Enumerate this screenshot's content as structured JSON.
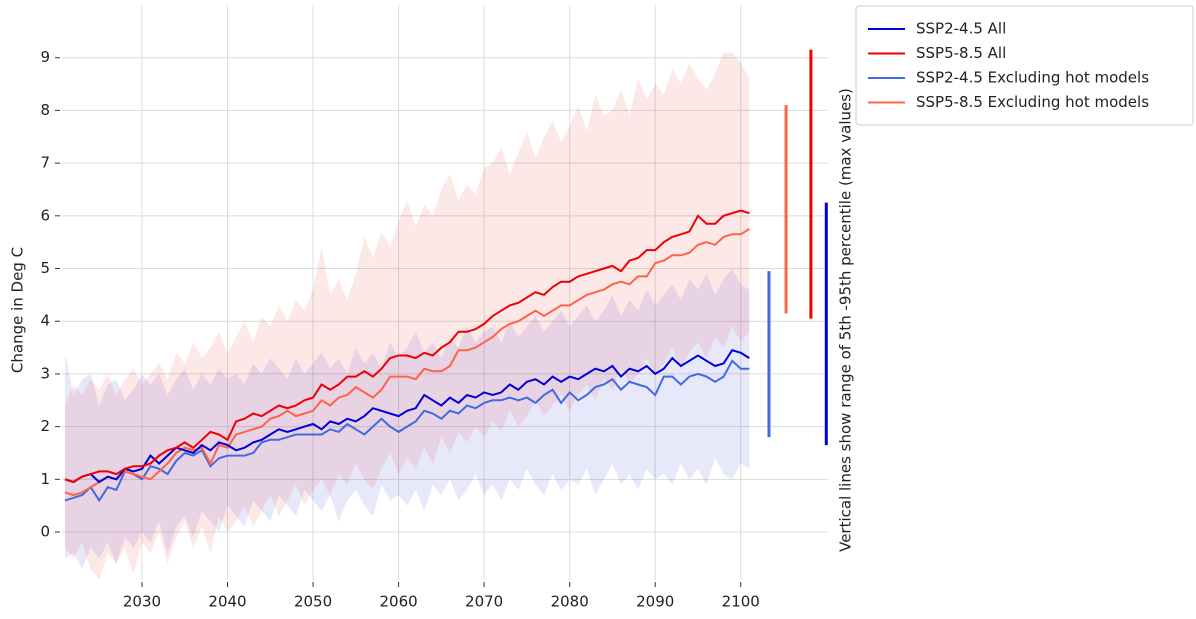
{
  "chart_data": {
    "type": "line",
    "ylabel": "Change in Deg C",
    "annotation": "Vertical lines show range of 5th -95th percentile (max values)",
    "x_start": 2021,
    "xlim": [
      2020.65,
      2110.2
    ],
    "ylim": [
      -0.91,
      10.0
    ],
    "xticks": [
      2030,
      2040,
      2050,
      2060,
      2070,
      2080,
      2090,
      2100
    ],
    "yticks": [
      0,
      1,
      2,
      3,
      4,
      5,
      6,
      7,
      8,
      9
    ],
    "grid": true,
    "legend": "upper right",
    "series": [
      {
        "name": "SSP2-4.5 All",
        "color": "#0000d8",
        "range_x": 2110.0,
        "range": [
          1.65,
          6.25
        ],
        "values": [
          1.0,
          0.95,
          1.05,
          1.1,
          0.95,
          1.05,
          1.0,
          1.2,
          1.15,
          1.2,
          1.45,
          1.3,
          1.45,
          1.6,
          1.55,
          1.5,
          1.65,
          1.55,
          1.7,
          1.65,
          1.55,
          1.6,
          1.7,
          1.75,
          1.85,
          1.95,
          1.9,
          1.95,
          2.0,
          2.05,
          1.95,
          2.1,
          2.05,
          2.15,
          2.1,
          2.2,
          2.35,
          2.3,
          2.25,
          2.2,
          2.3,
          2.35,
          2.6,
          2.5,
          2.4,
          2.55,
          2.45,
          2.6,
          2.55,
          2.65,
          2.6,
          2.65,
          2.8,
          2.7,
          2.85,
          2.9,
          2.8,
          2.95,
          2.85,
          2.95,
          2.9,
          3.0,
          3.1,
          3.05,
          3.15,
          2.95,
          3.1,
          3.05,
          3.15,
          3.0,
          3.1,
          3.3,
          3.15,
          3.25,
          3.35,
          3.25,
          3.15,
          3.2,
          3.45,
          3.4,
          3.3
        ],
        "lower": [
          -0.5,
          -0.4,
          -0.7,
          -0.3,
          -0.5,
          -0.2,
          -0.6,
          -0.1,
          -0.3,
          0.0,
          -0.2,
          0.2,
          -0.4,
          0.1,
          0.3,
          -0.1,
          0.4,
          0.2,
          0.0,
          0.5,
          0.3,
          0.1,
          0.6,
          0.4,
          0.2,
          0.7,
          0.5,
          0.3,
          0.8,
          0.6,
          0.4,
          0.7,
          0.2,
          0.6,
          0.8,
          0.5,
          0.3,
          0.9,
          0.6,
          0.7,
          0.5,
          0.8,
          0.4,
          0.9,
          0.7,
          1.0,
          0.6,
          0.8,
          1.1,
          0.7,
          0.9,
          0.6,
          1.0,
          0.8,
          1.2,
          0.9,
          0.7,
          1.1,
          0.8,
          1.0,
          0.9,
          1.2,
          0.7,
          1.0,
          1.3,
          0.9,
          1.1,
          0.8,
          1.2,
          1.0,
          1.1,
          0.9,
          1.3,
          1.0,
          1.2,
          0.9,
          1.4,
          1.1,
          1.0,
          1.3,
          1.2
        ],
        "upper": [
          3.4,
          2.6,
          2.9,
          3.0,
          2.4,
          2.8,
          2.9,
          2.5,
          2.7,
          3.0,
          2.8,
          3.0,
          2.6,
          2.9,
          3.1,
          2.7,
          3.0,
          2.8,
          3.1,
          2.9,
          3.0,
          2.8,
          3.2,
          3.0,
          3.3,
          3.1,
          2.9,
          3.3,
          3.0,
          3.2,
          3.4,
          3.1,
          3.3,
          3.0,
          3.5,
          3.2,
          3.4,
          3.1,
          3.6,
          3.3,
          3.5,
          3.8,
          3.4,
          3.6,
          3.3,
          3.7,
          3.5,
          3.9,
          3.6,
          3.8,
          3.9,
          3.6,
          4.0,
          3.7,
          3.9,
          4.1,
          3.8,
          4.0,
          4.2,
          3.9,
          4.1,
          4.3,
          4.0,
          4.2,
          4.5,
          4.1,
          4.4,
          4.2,
          4.6,
          4.3,
          4.5,
          4.7,
          4.4,
          4.8,
          4.6,
          4.9,
          4.5,
          4.8,
          5.0,
          4.7,
          4.6
        ]
      },
      {
        "name": "SSP5-8.5 All",
        "color": "#ee0000",
        "range_x": 2108.2,
        "range": [
          4.05,
          9.15
        ],
        "values": [
          1.0,
          0.95,
          1.05,
          1.1,
          1.15,
          1.15,
          1.1,
          1.2,
          1.25,
          1.25,
          1.3,
          1.45,
          1.55,
          1.6,
          1.7,
          1.6,
          1.75,
          1.9,
          1.85,
          1.75,
          2.1,
          2.15,
          2.25,
          2.2,
          2.3,
          2.4,
          2.35,
          2.4,
          2.5,
          2.55,
          2.8,
          2.7,
          2.8,
          2.95,
          2.95,
          3.05,
          2.95,
          3.1,
          3.3,
          3.35,
          3.35,
          3.3,
          3.4,
          3.35,
          3.5,
          3.6,
          3.8,
          3.8,
          3.85,
          3.95,
          4.1,
          4.2,
          4.3,
          4.35,
          4.45,
          4.55,
          4.5,
          4.65,
          4.75,
          4.75,
          4.85,
          4.9,
          4.95,
          5.0,
          5.05,
          4.95,
          5.15,
          5.2,
          5.35,
          5.35,
          5.5,
          5.6,
          5.65,
          5.7,
          6.0,
          5.85,
          5.85,
          6.0,
          6.05,
          6.1,
          6.05
        ],
        "lower": [
          -0.3,
          -0.5,
          -0.2,
          -0.7,
          -0.9,
          -0.4,
          -0.6,
          -0.3,
          -0.8,
          -0.2,
          -0.4,
          0.0,
          -0.6,
          -0.1,
          0.2,
          -0.3,
          0.1,
          -0.4,
          0.3,
          0.0,
          0.2,
          0.5,
          0.1,
          0.4,
          0.7,
          0.3,
          0.6,
          0.9,
          0.5,
          0.8,
          1.0,
          0.7,
          1.1,
          0.9,
          1.3,
          1.0,
          0.8,
          1.2,
          1.5,
          1.1,
          1.4,
          1.2,
          1.6,
          1.3,
          1.8,
          1.5,
          1.9,
          1.7,
          2.0,
          1.8,
          2.1,
          1.9,
          2.3,
          2.0,
          2.2,
          2.5,
          2.2,
          2.4,
          2.6,
          2.3,
          2.6,
          2.8,
          2.5,
          2.9,
          2.7,
          3.1,
          2.8,
          3.0,
          3.3,
          3.0,
          3.2,
          3.5,
          3.1,
          3.4,
          3.6,
          3.3,
          3.7,
          3.5,
          3.9,
          3.6,
          3.8
        ],
        "upper": [
          2.4,
          2.8,
          2.6,
          2.9,
          2.7,
          3.0,
          2.6,
          2.9,
          3.1,
          2.8,
          3.0,
          3.2,
          2.9,
          3.4,
          3.2,
          3.6,
          3.3,
          3.5,
          3.8,
          3.4,
          3.7,
          4.0,
          3.6,
          4.1,
          3.9,
          4.3,
          4.0,
          4.4,
          4.2,
          4.6,
          5.4,
          4.5,
          4.8,
          4.4,
          4.9,
          5.6,
          5.2,
          5.7,
          5.4,
          5.9,
          6.3,
          5.8,
          6.2,
          6.0,
          6.5,
          6.8,
          6.3,
          6.6,
          6.4,
          6.9,
          7.0,
          7.3,
          6.8,
          7.2,
          7.6,
          7.1,
          7.5,
          7.8,
          7.4,
          7.7,
          8.1,
          7.6,
          8.3,
          7.9,
          8.0,
          8.4,
          7.9,
          8.6,
          8.2,
          8.5,
          8.3,
          8.8,
          8.5,
          8.9,
          8.6,
          8.4,
          8.7,
          9.1,
          9.1,
          8.9,
          8.6
        ]
      },
      {
        "name": "SSP2-4.5 Excluding hot models",
        "color": "#4169e1",
        "range_x": 2103.3,
        "range": [
          1.8,
          4.95
        ],
        "values": [
          0.6,
          0.65,
          0.7,
          0.85,
          0.6,
          0.85,
          0.8,
          1.15,
          1.1,
          1.0,
          1.25,
          1.2,
          1.1,
          1.35,
          1.5,
          1.45,
          1.55,
          1.25,
          1.4,
          1.45,
          1.45,
          1.45,
          1.5,
          1.7,
          1.75,
          1.75,
          1.8,
          1.85,
          1.85,
          1.85,
          1.85,
          1.95,
          1.9,
          2.05,
          1.95,
          1.85,
          2.0,
          2.15,
          2.0,
          1.9,
          2.0,
          2.1,
          2.3,
          2.25,
          2.15,
          2.3,
          2.25,
          2.4,
          2.35,
          2.45,
          2.5,
          2.5,
          2.55,
          2.5,
          2.55,
          2.45,
          2.6,
          2.7,
          2.45,
          2.65,
          2.5,
          2.6,
          2.75,
          2.8,
          2.9,
          2.7,
          2.85,
          2.8,
          2.75,
          2.6,
          2.95,
          2.95,
          2.8,
          2.95,
          3.0,
          2.95,
          2.85,
          2.95,
          3.25,
          3.1,
          3.1
        ]
      },
      {
        "name": "SSP5-8.5 Excluding hot models",
        "color": "#ff6347",
        "range_x": 2105.3,
        "range": [
          4.15,
          8.1
        ],
        "values": [
          0.75,
          0.7,
          0.75,
          0.85,
          0.95,
          1.05,
          1.0,
          1.15,
          1.1,
          1.05,
          1.0,
          1.15,
          1.3,
          1.5,
          1.6,
          1.55,
          1.6,
          1.3,
          1.65,
          1.6,
          1.85,
          1.9,
          1.95,
          2.0,
          2.15,
          2.2,
          2.3,
          2.2,
          2.25,
          2.3,
          2.5,
          2.4,
          2.55,
          2.6,
          2.75,
          2.65,
          2.55,
          2.7,
          2.95,
          2.95,
          2.95,
          2.9,
          3.1,
          3.05,
          3.05,
          3.15,
          3.45,
          3.45,
          3.5,
          3.6,
          3.7,
          3.85,
          3.95,
          4.0,
          4.1,
          4.2,
          4.1,
          4.2,
          4.3,
          4.3,
          4.4,
          4.5,
          4.55,
          4.6,
          4.7,
          4.75,
          4.7,
          4.85,
          4.85,
          5.1,
          5.15,
          5.25,
          5.25,
          5.3,
          5.45,
          5.5,
          5.45,
          5.6,
          5.65,
          5.65,
          5.75
        ]
      }
    ]
  }
}
